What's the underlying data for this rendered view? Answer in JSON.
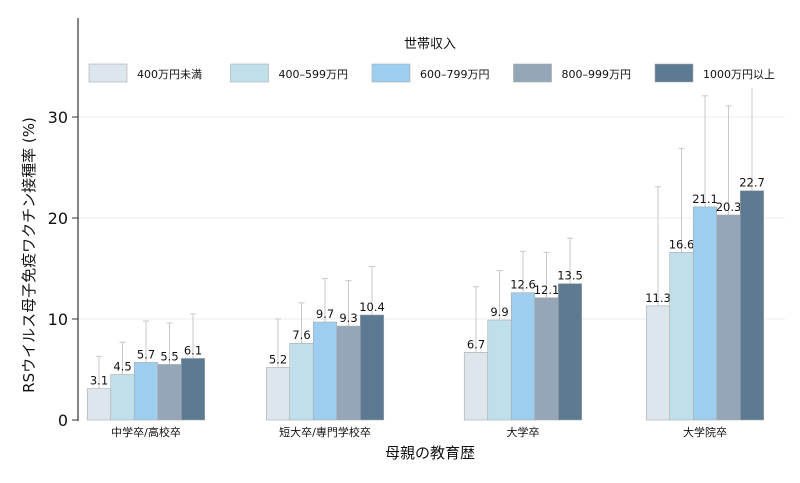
{
  "chart_data": {
    "type": "bar",
    "xlabel": "母親の教育歴",
    "ylabel": "RSウイルス母子免疫ワクチン接種率 (%)",
    "ylim": [
      0,
      33
    ],
    "yticks": [
      0,
      10,
      20,
      30
    ],
    "grid": true,
    "legend": {
      "title": "世帯収入",
      "placement": "top"
    },
    "categories": [
      "中学卒/高校卒",
      "短大卒/専門学校卒",
      "大学卒",
      "大学院卒"
    ],
    "series": [
      {
        "name": "400万円未満",
        "color": "#dde6ed",
        "values": [
          3.1,
          5.2,
          6.7,
          11.3
        ],
        "upper": [
          6.3,
          10.0,
          13.2,
          23.1
        ]
      },
      {
        "name": "400–599万円",
        "color": "#bfe0ea",
        "values": [
          4.5,
          7.6,
          9.9,
          16.6
        ],
        "upper": [
          7.7,
          11.6,
          14.8,
          26.9
        ]
      },
      {
        "name": "600–799万円",
        "color": "#9dcdef",
        "values": [
          5.7,
          9.7,
          12.6,
          21.1
        ],
        "upper": [
          9.8,
          14.0,
          16.7,
          32.1
        ]
      },
      {
        "name": "800–999万円",
        "color": "#94a6b8",
        "values": [
          5.5,
          9.3,
          12.1,
          20.3
        ],
        "upper": [
          9.6,
          13.8,
          16.6,
          31.1
        ]
      },
      {
        "name": "1000万円以上",
        "color": "#5c7a92",
        "values": [
          6.1,
          10.4,
          13.5,
          22.7
        ],
        "upper": [
          10.5,
          15.2,
          18.0,
          33.0
        ]
      }
    ]
  }
}
